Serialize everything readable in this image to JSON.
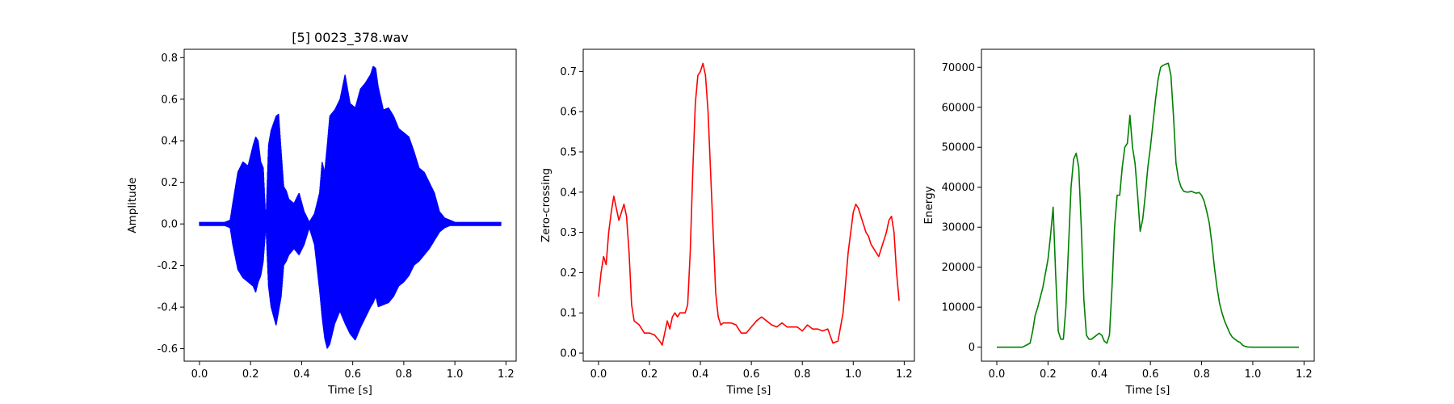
{
  "chart_data": [
    {
      "type": "line",
      "title": "[5] 0023_378.wav",
      "xlabel": "Time [s]",
      "ylabel": "Amplitude",
      "xlim": [
        -0.06,
        1.24
      ],
      "ylim": [
        -0.66,
        0.84
      ],
      "xticks": [
        0.0,
        0.2,
        0.4,
        0.6,
        0.8,
        1.0,
        1.2
      ],
      "yticks": [
        -0.6,
        -0.4,
        -0.2,
        0.0,
        0.2,
        0.4,
        0.6,
        0.8
      ],
      "color": "#0000ff",
      "grid": false,
      "series": [
        {
          "render": "envelope",
          "x": [
            0.0,
            0.02,
            0.04,
            0.06,
            0.08,
            0.1,
            0.12,
            0.13,
            0.15,
            0.17,
            0.19,
            0.21,
            0.22,
            0.23,
            0.24,
            0.25,
            0.26,
            0.27,
            0.28,
            0.3,
            0.31,
            0.32,
            0.33,
            0.34,
            0.35,
            0.37,
            0.39,
            0.41,
            0.43,
            0.45,
            0.47,
            0.48,
            0.49,
            0.5,
            0.51,
            0.53,
            0.55,
            0.57,
            0.59,
            0.61,
            0.63,
            0.65,
            0.67,
            0.68,
            0.69,
            0.7,
            0.72,
            0.74,
            0.76,
            0.78,
            0.8,
            0.82,
            0.84,
            0.86,
            0.88,
            0.9,
            0.92,
            0.94,
            0.96,
            0.98,
            1.0,
            1.02,
            1.05,
            1.1,
            1.15,
            1.18
          ],
          "upper": [
            0.01,
            0.01,
            0.01,
            0.01,
            0.01,
            0.01,
            0.02,
            0.1,
            0.25,
            0.3,
            0.28,
            0.38,
            0.42,
            0.4,
            0.3,
            0.27,
            0.01,
            0.38,
            0.45,
            0.52,
            0.53,
            0.35,
            0.18,
            0.16,
            0.12,
            0.1,
            0.15,
            0.06,
            0.01,
            0.05,
            0.15,
            0.3,
            0.25,
            0.38,
            0.52,
            0.55,
            0.6,
            0.72,
            0.58,
            0.56,
            0.65,
            0.68,
            0.72,
            0.76,
            0.75,
            0.66,
            0.55,
            0.56,
            0.52,
            0.46,
            0.44,
            0.42,
            0.35,
            0.27,
            0.25,
            0.2,
            0.15,
            0.06,
            0.03,
            0.02,
            0.01,
            0.01,
            0.01,
            0.01,
            0.01,
            0.01
          ],
          "lower": [
            -0.01,
            -0.01,
            -0.01,
            -0.01,
            -0.01,
            -0.01,
            -0.02,
            -0.1,
            -0.22,
            -0.26,
            -0.28,
            -0.3,
            -0.33,
            -0.28,
            -0.25,
            -0.18,
            -0.01,
            -0.3,
            -0.4,
            -0.49,
            -0.42,
            -0.35,
            -0.2,
            -0.18,
            -0.15,
            -0.12,
            -0.15,
            -0.1,
            -0.02,
            -0.1,
            -0.32,
            -0.45,
            -0.55,
            -0.6,
            -0.58,
            -0.48,
            -0.42,
            -0.48,
            -0.53,
            -0.56,
            -0.5,
            -0.45,
            -0.4,
            -0.38,
            -0.35,
            -0.4,
            -0.39,
            -0.38,
            -0.35,
            -0.3,
            -0.28,
            -0.25,
            -0.2,
            -0.18,
            -0.15,
            -0.12,
            -0.08,
            -0.04,
            -0.02,
            -0.01,
            -0.01,
            -0.01,
            -0.01,
            -0.01,
            -0.01,
            -0.01
          ]
        }
      ]
    },
    {
      "type": "line",
      "title": "",
      "xlabel": "Time [s]",
      "ylabel": "Zero-crossing",
      "xlim": [
        -0.06,
        1.24
      ],
      "ylim": [
        -0.02,
        0.755
      ],
      "xticks": [
        0.0,
        0.2,
        0.4,
        0.6,
        0.8,
        1.0,
        1.2
      ],
      "yticks": [
        0.0,
        0.1,
        0.2,
        0.3,
        0.4,
        0.5,
        0.6,
        0.7
      ],
      "color": "#ff0000",
      "grid": false,
      "series": [
        {
          "render": "line",
          "x": [
            0.0,
            0.01,
            0.02,
            0.03,
            0.04,
            0.05,
            0.06,
            0.07,
            0.08,
            0.09,
            0.1,
            0.11,
            0.12,
            0.13,
            0.14,
            0.16,
            0.18,
            0.2,
            0.22,
            0.24,
            0.25,
            0.26,
            0.27,
            0.28,
            0.29,
            0.3,
            0.31,
            0.32,
            0.33,
            0.34,
            0.35,
            0.36,
            0.37,
            0.38,
            0.39,
            0.4,
            0.41,
            0.42,
            0.43,
            0.44,
            0.45,
            0.46,
            0.47,
            0.48,
            0.49,
            0.5,
            0.52,
            0.54,
            0.56,
            0.58,
            0.6,
            0.62,
            0.64,
            0.66,
            0.68,
            0.7,
            0.72,
            0.74,
            0.76,
            0.78,
            0.8,
            0.82,
            0.84,
            0.86,
            0.88,
            0.9,
            0.92,
            0.94,
            0.96,
            0.98,
            1.0,
            1.01,
            1.02,
            1.03,
            1.04,
            1.05,
            1.06,
            1.07,
            1.08,
            1.09,
            1.1,
            1.11,
            1.12,
            1.13,
            1.14,
            1.15,
            1.16,
            1.17,
            1.18
          ],
          "y": [
            0.14,
            0.2,
            0.24,
            0.22,
            0.3,
            0.35,
            0.39,
            0.36,
            0.33,
            0.35,
            0.37,
            0.34,
            0.25,
            0.12,
            0.08,
            0.07,
            0.05,
            0.05,
            0.045,
            0.03,
            0.02,
            0.05,
            0.08,
            0.06,
            0.09,
            0.1,
            0.09,
            0.1,
            0.1,
            0.1,
            0.12,
            0.25,
            0.45,
            0.62,
            0.69,
            0.7,
            0.72,
            0.69,
            0.6,
            0.45,
            0.3,
            0.15,
            0.09,
            0.07,
            0.075,
            0.075,
            0.075,
            0.07,
            0.05,
            0.05,
            0.065,
            0.08,
            0.09,
            0.08,
            0.07,
            0.065,
            0.075,
            0.065,
            0.065,
            0.065,
            0.055,
            0.07,
            0.06,
            0.06,
            0.055,
            0.06,
            0.025,
            0.03,
            0.1,
            0.25,
            0.35,
            0.37,
            0.36,
            0.34,
            0.32,
            0.3,
            0.29,
            0.27,
            0.26,
            0.25,
            0.24,
            0.26,
            0.28,
            0.3,
            0.33,
            0.34,
            0.3,
            0.2,
            0.13
          ]
        }
      ]
    },
    {
      "type": "line",
      "title": "",
      "xlabel": "Time [s]",
      "ylabel": "Energy",
      "xlim": [
        -0.06,
        1.24
      ],
      "ylim": [
        -3500,
        74500
      ],
      "xticks": [
        0.0,
        0.2,
        0.4,
        0.6,
        0.8,
        1.0,
        1.2
      ],
      "yticks": [
        0,
        10000,
        20000,
        30000,
        40000,
        50000,
        60000,
        70000
      ],
      "color": "#008000",
      "grid": false,
      "series": [
        {
          "render": "line",
          "x": [
            0.0,
            0.05,
            0.1,
            0.13,
            0.14,
            0.15,
            0.16,
            0.18,
            0.2,
            0.21,
            0.22,
            0.23,
            0.24,
            0.25,
            0.26,
            0.27,
            0.28,
            0.29,
            0.3,
            0.31,
            0.32,
            0.33,
            0.34,
            0.35,
            0.36,
            0.37,
            0.38,
            0.39,
            0.4,
            0.41,
            0.42,
            0.43,
            0.44,
            0.45,
            0.46,
            0.47,
            0.48,
            0.49,
            0.5,
            0.51,
            0.52,
            0.53,
            0.54,
            0.55,
            0.56,
            0.57,
            0.58,
            0.59,
            0.6,
            0.61,
            0.62,
            0.63,
            0.64,
            0.65,
            0.66,
            0.67,
            0.68,
            0.69,
            0.7,
            0.71,
            0.72,
            0.73,
            0.74,
            0.75,
            0.76,
            0.77,
            0.78,
            0.79,
            0.8,
            0.81,
            0.82,
            0.83,
            0.84,
            0.85,
            0.86,
            0.87,
            0.88,
            0.89,
            0.9,
            0.91,
            0.92,
            0.93,
            0.94,
            0.95,
            0.96,
            0.97,
            0.98,
            1.0,
            1.05,
            1.1,
            1.15,
            1.18
          ],
          "y": [
            0,
            0,
            0,
            1000,
            4000,
            8000,
            10000,
            15000,
            22000,
            28000,
            35000,
            18000,
            4000,
            2000,
            2000,
            10000,
            25000,
            40000,
            47000,
            48500,
            45000,
            30000,
            12000,
            3000,
            2000,
            2000,
            2500,
            3000,
            3500,
            3000,
            1500,
            1000,
            3000,
            15000,
            30000,
            38000,
            38000,
            45000,
            50000,
            51000,
            58000,
            50000,
            46000,
            38000,
            29000,
            32000,
            38000,
            45000,
            50000,
            56000,
            62000,
            67000,
            70000,
            70500,
            70800,
            71000,
            68000,
            58000,
            46000,
            42000,
            40000,
            39000,
            38800,
            38800,
            39000,
            38700,
            38500,
            38700,
            38000,
            36500,
            34000,
            31000,
            26000,
            20000,
            15000,
            11000,
            8500,
            6500,
            5000,
            3500,
            2500,
            2000,
            1500,
            1200,
            500,
            200,
            50,
            0,
            0,
            0,
            0,
            0
          ]
        }
      ]
    }
  ]
}
